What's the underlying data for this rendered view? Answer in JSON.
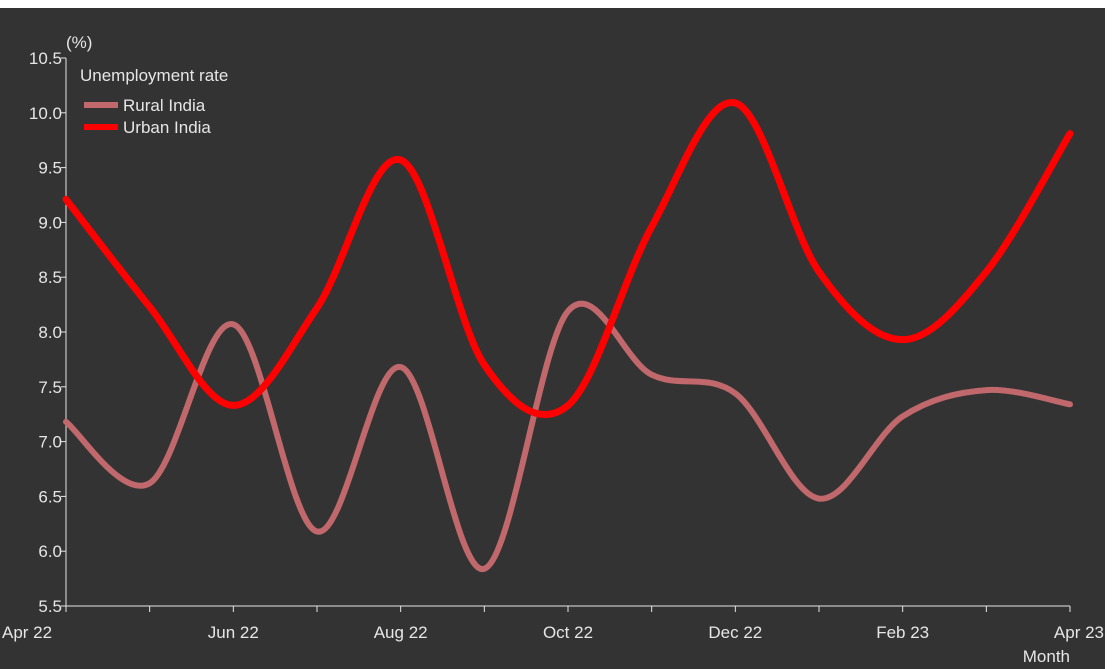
{
  "chart_data": {
    "type": "line",
    "unit_label": "(%)",
    "xlabel": "Month",
    "ylabel": "",
    "ylim": [
      5.5,
      10.5
    ],
    "yticks": [
      "5.5",
      "6.0",
      "6.5",
      "7.0",
      "7.5",
      "8.0",
      "8.5",
      "9.0",
      "9.5",
      "10.0",
      "10.5"
    ],
    "tick_labels": [
      "Apr 22",
      "Jun 22",
      "Aug 22",
      "Oct 22",
      "Dec 22",
      "Feb 23",
      "Apr 23"
    ],
    "x": [
      "Apr 22",
      "May 22",
      "Jun 22",
      "Jul 22",
      "Aug 22",
      "Sep 22",
      "Oct 22",
      "Nov 22",
      "Dec 22",
      "Jan 23",
      "Feb 23",
      "Mar 23",
      "Apr 23"
    ],
    "legend": {
      "title": "Unemployment rate",
      "position": "top-left"
    },
    "grid": false,
    "series": [
      {
        "name": "Rural India",
        "color": "#c0686b",
        "values": [
          7.18,
          6.62,
          8.07,
          6.18,
          7.68,
          5.84,
          8.19,
          7.61,
          7.44,
          6.48,
          7.23,
          7.47,
          7.34
        ]
      },
      {
        "name": "Urban India",
        "color": "#ff0000",
        "values": [
          9.21,
          8.23,
          7.33,
          8.22,
          9.57,
          7.7,
          7.33,
          8.96,
          10.09,
          8.55,
          7.93,
          8.55,
          9.81
        ]
      }
    ]
  },
  "colors": {
    "background": "#333333",
    "text": "#e6e6e6"
  }
}
